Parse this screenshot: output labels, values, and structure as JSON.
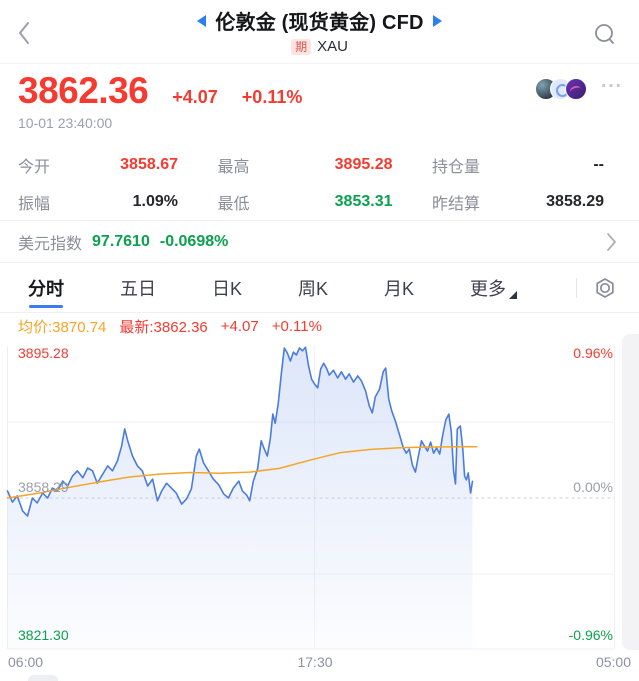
{
  "header": {
    "title": "伦敦金 (现货黄金) CFD",
    "badge": "期",
    "symbol": "XAU"
  },
  "quote": {
    "price": "3862.36",
    "change": "+4.07",
    "change_pct": "+0.11%",
    "timestamp": "10-01 23:40:00",
    "more_label": "···"
  },
  "stats": {
    "rows": [
      [
        {
          "label": "今开",
          "value": "3858.67",
          "tone": "red"
        },
        {
          "label": "最高",
          "value": "3895.28",
          "tone": "red"
        },
        {
          "label": "持仓量",
          "value": "--",
          "tone": "dark"
        }
      ],
      [
        {
          "label": "振幅",
          "value": "1.09%",
          "tone": "dark"
        },
        {
          "label": "最低",
          "value": "3853.31",
          "tone": "green"
        },
        {
          "label": "昨结算",
          "value": "3858.29",
          "tone": "dark"
        }
      ]
    ]
  },
  "usd_index": {
    "label": "美元指数",
    "value": "97.7610",
    "change_pct": "-0.0698%"
  },
  "tabs": {
    "items": [
      {
        "label": "分时",
        "active": true
      },
      {
        "label": "五日",
        "active": false
      },
      {
        "label": "日K",
        "active": false
      },
      {
        "label": "周K",
        "active": false
      },
      {
        "label": "月K",
        "active": false
      },
      {
        "label": "更多",
        "active": false,
        "has_caret": true
      }
    ]
  },
  "legend": {
    "avg": "均价:3870.74",
    "last": "最新:3862.36",
    "change": "+4.07",
    "change_pct": "+0.11%"
  },
  "colors": {
    "up_red": "#f53b30",
    "down_green": "#0ba14d",
    "avg_orange": "#f7a426",
    "line_blue": "#4a7ce0",
    "accent_blue": "#3b7cf5"
  },
  "chart_data": {
    "type": "line",
    "title": "分时 (intraday minute line)",
    "x_labels": [
      "06:00",
      "17:30",
      "05:00"
    ],
    "y_labels": {
      "high": {
        "price": "3895.28",
        "pct": "0.96%"
      },
      "mid": {
        "price": "3858.29",
        "pct": "0.00%"
      },
      "low": {
        "price": "3821.30",
        "pct": "-0.96%"
      }
    },
    "axis": {
      "high": 3895.28,
      "prev_close": 3858.29,
      "low": 3821.3
    },
    "h_gridlines": [
      3876.79,
      3839.8
    ],
    "v_gridlines": [
      0.506
    ],
    "session_end": 0.766,
    "grid": true,
    "series": [
      {
        "name": "price",
        "color": "#4a7ce0",
        "fill": true,
        "area_top": "rgba(86,132,226,0.20)",
        "area_bottom": "rgba(86,132,226,0.02)",
        "points": [
          [
            0,
            3860.0
          ],
          [
            0.008,
            3857.3
          ],
          [
            0.016,
            3858.8
          ],
          [
            0.025,
            3855.1
          ],
          [
            0.033,
            3853.9
          ],
          [
            0.041,
            3858.3
          ],
          [
            0.049,
            3857.1
          ],
          [
            0.058,
            3859.5
          ],
          [
            0.066,
            3858.3
          ],
          [
            0.074,
            3860.7
          ],
          [
            0.082,
            3860.0
          ],
          [
            0.091,
            3862.4
          ],
          [
            0.099,
            3861.2
          ],
          [
            0.107,
            3863.6
          ],
          [
            0.115,
            3864.9
          ],
          [
            0.124,
            3863.2
          ],
          [
            0.132,
            3865.6
          ],
          [
            0.14,
            3864.9
          ],
          [
            0.148,
            3861.9
          ],
          [
            0.157,
            3864.1
          ],
          [
            0.165,
            3866.1
          ],
          [
            0.173,
            3864.9
          ],
          [
            0.181,
            3867.3
          ],
          [
            0.188,
            3870.9
          ],
          [
            0.193,
            3875.1
          ],
          [
            0.198,
            3872.2
          ],
          [
            0.206,
            3868.5
          ],
          [
            0.214,
            3866.1
          ],
          [
            0.222,
            3864.9
          ],
          [
            0.231,
            3861.2
          ],
          [
            0.239,
            3862.9
          ],
          [
            0.247,
            3857.6
          ],
          [
            0.254,
            3860.0
          ],
          [
            0.262,
            3861.9
          ],
          [
            0.27,
            3860.7
          ],
          [
            0.278,
            3859.5
          ],
          [
            0.287,
            3856.8
          ],
          [
            0.295,
            3858.1
          ],
          [
            0.303,
            3860.5
          ],
          [
            0.311,
            3868.5
          ],
          [
            0.316,
            3870.2
          ],
          [
            0.323,
            3866.8
          ],
          [
            0.331,
            3864.9
          ],
          [
            0.339,
            3862.9
          ],
          [
            0.348,
            3861.5
          ],
          [
            0.356,
            3859.3
          ],
          [
            0.364,
            3858.3
          ],
          [
            0.372,
            3860.7
          ],
          [
            0.381,
            3862.4
          ],
          [
            0.387,
            3860.0
          ],
          [
            0.394,
            3859.0
          ],
          [
            0.399,
            3857.6
          ],
          [
            0.405,
            3862.4
          ],
          [
            0.412,
            3865.4
          ],
          [
            0.418,
            3872.2
          ],
          [
            0.423,
            3870.2
          ],
          [
            0.428,
            3868.5
          ],
          [
            0.433,
            3872.7
          ],
          [
            0.437,
            3878.7
          ],
          [
            0.441,
            3876.5
          ],
          [
            0.446,
            3881.2
          ],
          [
            0.451,
            3888.5
          ],
          [
            0.456,
            3894.8
          ],
          [
            0.461,
            3893.6
          ],
          [
            0.466,
            3891.6
          ],
          [
            0.471,
            3893.8
          ],
          [
            0.476,
            3893.1
          ],
          [
            0.481,
            3894.8
          ],
          [
            0.486,
            3894.1
          ],
          [
            0.491,
            3895.0
          ],
          [
            0.496,
            3890.4
          ],
          [
            0.501,
            3887.2
          ],
          [
            0.506,
            3886.0
          ],
          [
            0.511,
            3885.1
          ],
          [
            0.516,
            3889.7
          ],
          [
            0.521,
            3891.1
          ],
          [
            0.526,
            3889.7
          ],
          [
            0.53,
            3888.2
          ],
          [
            0.537,
            3889.4
          ],
          [
            0.544,
            3887.5
          ],
          [
            0.55,
            3889.0
          ],
          [
            0.557,
            3887.2
          ],
          [
            0.563,
            3888.5
          ],
          [
            0.57,
            3886.5
          ],
          [
            0.577,
            3888.0
          ],
          [
            0.583,
            3886.8
          ],
          [
            0.59,
            3884.3
          ],
          [
            0.596,
            3880.7
          ],
          [
            0.601,
            3879.0
          ],
          [
            0.606,
            3882.9
          ],
          [
            0.613,
            3884.8
          ],
          [
            0.619,
            3889.0
          ],
          [
            0.623,
            3889.9
          ],
          [
            0.628,
            3882.4
          ],
          [
            0.633,
            3879.5
          ],
          [
            0.639,
            3877.0
          ],
          [
            0.646,
            3873.6
          ],
          [
            0.652,
            3870.5
          ],
          [
            0.657,
            3869.2
          ],
          [
            0.662,
            3870.2
          ],
          [
            0.667,
            3866.3
          ],
          [
            0.672,
            3864.6
          ],
          [
            0.677,
            3868.5
          ],
          [
            0.682,
            3872.2
          ],
          [
            0.687,
            3870.9
          ],
          [
            0.692,
            3869.7
          ],
          [
            0.697,
            3871.9
          ],
          [
            0.702,
            3869.2
          ],
          [
            0.707,
            3870.5
          ],
          [
            0.712,
            3869.0
          ],
          [
            0.717,
            3873.6
          ],
          [
            0.722,
            3877.3
          ],
          [
            0.727,
            3878.7
          ],
          [
            0.731,
            3874.6
          ],
          [
            0.735,
            3864.9
          ],
          [
            0.738,
            3861.7
          ],
          [
            0.741,
            3875.1
          ],
          [
            0.746,
            3875.8
          ],
          [
            0.75,
            3870.2
          ],
          [
            0.753,
            3863.6
          ],
          [
            0.756,
            3862.7
          ],
          [
            0.759,
            3864.4
          ],
          [
            0.763,
            3859.5
          ],
          [
            0.766,
            3862.36
          ]
        ]
      },
      {
        "name": "average",
        "color": "#f7a426",
        "fill": false,
        "points": [
          [
            0,
            3858.3
          ],
          [
            0.053,
            3859.5
          ],
          [
            0.102,
            3860.9
          ],
          [
            0.152,
            3862.2
          ],
          [
            0.201,
            3863.4
          ],
          [
            0.25,
            3864.1
          ],
          [
            0.3,
            3864.5
          ],
          [
            0.349,
            3864.3
          ],
          [
            0.399,
            3864.6
          ],
          [
            0.448,
            3865.5
          ],
          [
            0.498,
            3867.5
          ],
          [
            0.547,
            3869.3
          ],
          [
            0.596,
            3870.1
          ],
          [
            0.646,
            3870.5
          ],
          [
            0.695,
            3870.7
          ],
          [
            0.745,
            3870.74
          ],
          [
            0.773,
            3870.74
          ]
        ]
      }
    ]
  }
}
